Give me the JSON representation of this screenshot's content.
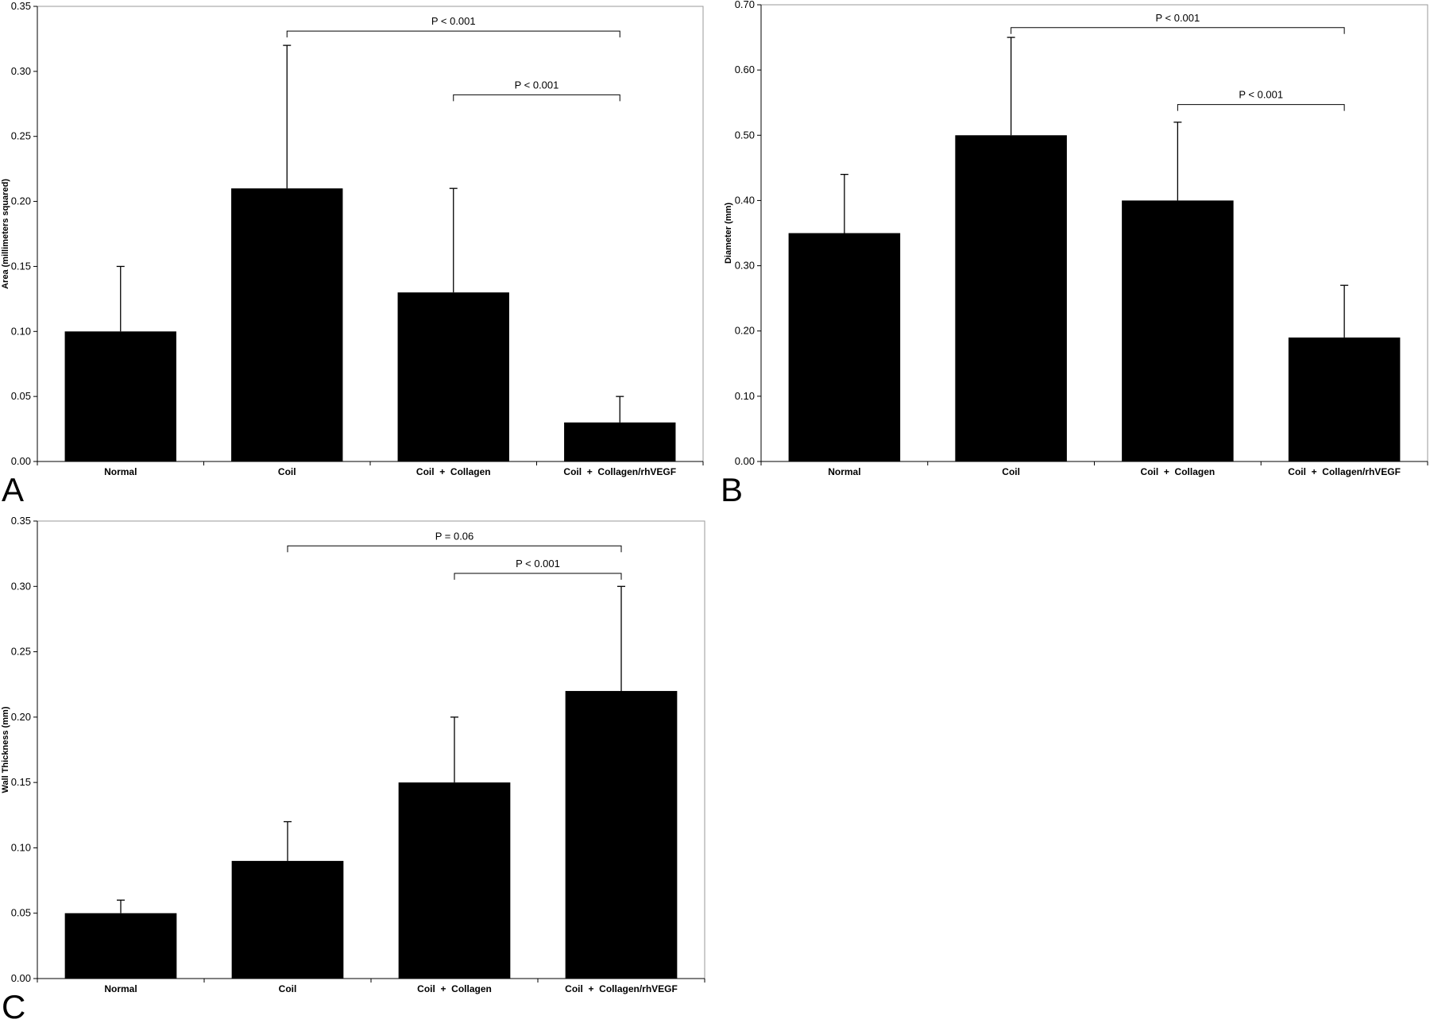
{
  "chart_data": [
    {
      "panel": "A",
      "type": "bar",
      "categories": [
        "Normal",
        "Coil",
        "Coil  +  Collagen",
        "Coil  +  Collagen/rhVEGF"
      ],
      "values": [
        0.1,
        0.21,
        0.13,
        0.03
      ],
      "error_bars": [
        0.05,
        0.11,
        0.08,
        0.02
      ],
      "ylabel": "Area (millimeters squared)",
      "ylim": [
        0,
        0.35
      ],
      "yticks": [
        "0.00",
        "0.05",
        "0.10",
        "0.15",
        "0.20",
        "0.25",
        "0.30",
        "0.35"
      ],
      "bar_color": "#000000",
      "grid": false,
      "comparisons": [
        {
          "from": 1,
          "to": 3,
          "label": "P < 0.001",
          "level": 0.331
        },
        {
          "from": 2,
          "to": 3,
          "label": "P < 0.001",
          "level": 0.282
        }
      ]
    },
    {
      "panel": "B",
      "type": "bar",
      "categories": [
        "Normal",
        "Coil",
        "Coil  +  Collagen",
        "Coil  +  Collagen/rhVEGF"
      ],
      "values": [
        0.35,
        0.5,
        0.4,
        0.19
      ],
      "error_bars": [
        0.09,
        0.15,
        0.12,
        0.08
      ],
      "ylabel": "Diameter (mm)",
      "ylim": [
        0,
        0.7
      ],
      "yticks": [
        "0.00",
        "0.10",
        "0.20",
        "0.30",
        "0.40",
        "0.50",
        "0.60",
        "0.70"
      ],
      "bar_color": "#000000",
      "grid": false,
      "comparisons": [
        {
          "from": 1,
          "to": 3,
          "label": "P < 0.001",
          "level": 0.665
        },
        {
          "from": 2,
          "to": 3,
          "label": "P < 0.001",
          "level": 0.547
        }
      ]
    },
    {
      "panel": "C",
      "type": "bar",
      "categories": [
        "Normal",
        "Coil",
        "Coil  +  Collagen",
        "Coil  +  Collagen/rhVEGF"
      ],
      "values": [
        0.05,
        0.09,
        0.15,
        0.22
      ],
      "error_bars": [
        0.01,
        0.03,
        0.05,
        0.08
      ],
      "ylabel": "Wall Thickness (mm)",
      "ylim": [
        0,
        0.35
      ],
      "yticks": [
        "0.00",
        "0.05",
        "0.10",
        "0.15",
        "0.20",
        "0.25",
        "0.30",
        "0.35"
      ],
      "bar_color": "#000000",
      "grid": false,
      "comparisons": [
        {
          "from": 1,
          "to": 3,
          "label": "P = 0.06",
          "level": 0.331
        },
        {
          "from": 2,
          "to": 3,
          "label": "P < 0.001",
          "level": 0.31
        }
      ]
    }
  ]
}
